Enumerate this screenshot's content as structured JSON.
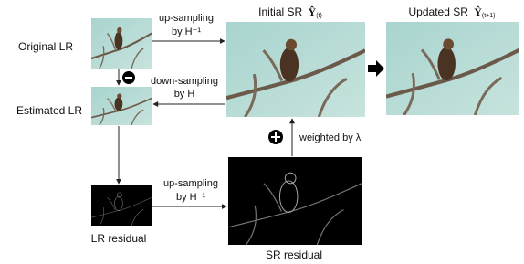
{
  "nodes": [
    {
      "label": "Original LR"
    },
    {
      "label": "Estimated LR"
    },
    {
      "label": "LR residual"
    },
    {
      "label": "Initial SR",
      "symbol": "Ŷ",
      "subscript": "(t)"
    },
    {
      "label": "Updated SR",
      "symbol": "Ŷ",
      "subscript": "(t+1)"
    },
    {
      "label": "SR residual"
    }
  ],
  "edges": [
    {
      "lines": [
        "up-sampling",
        "by H⁻¹"
      ]
    },
    {
      "lines": [
        "down-sampling",
        "by H"
      ]
    },
    {
      "lines": [
        "up-sampling",
        "by H⁻¹"
      ]
    },
    {
      "lines": [
        "weighted by λ"
      ]
    }
  ]
}
